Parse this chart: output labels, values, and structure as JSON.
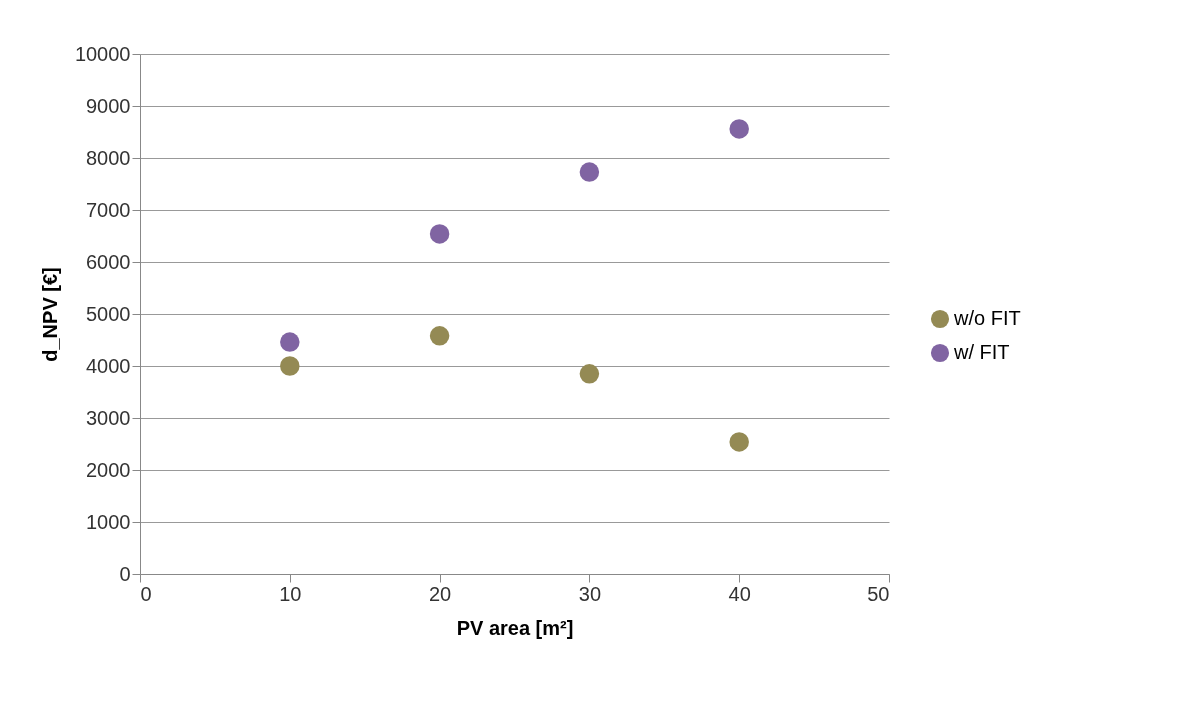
{
  "chart_data": {
    "type": "scatter",
    "xlabel": "PV area [m²]",
    "ylabel": "d_NPV [€]",
    "x": [
      10,
      20,
      30,
      40
    ],
    "series": [
      {
        "name": "w/o FIT",
        "color": "#948a54",
        "values": [
          4000,
          4580,
          3850,
          2540
        ]
      },
      {
        "name": "w/ FIT",
        "color": "#8064a2",
        "values": [
          4460,
          6540,
          7730,
          8560
        ]
      }
    ],
    "xlim": [
      0,
      50
    ],
    "xticks": [
      0,
      10,
      20,
      30,
      40,
      50
    ],
    "ylim": [
      0,
      10000
    ],
    "yticks": [
      0,
      1000,
      2000,
      3000,
      4000,
      5000,
      6000,
      7000,
      8000,
      9000,
      10000
    ],
    "grid": "y",
    "legend": "right",
    "marker": "circle"
  }
}
